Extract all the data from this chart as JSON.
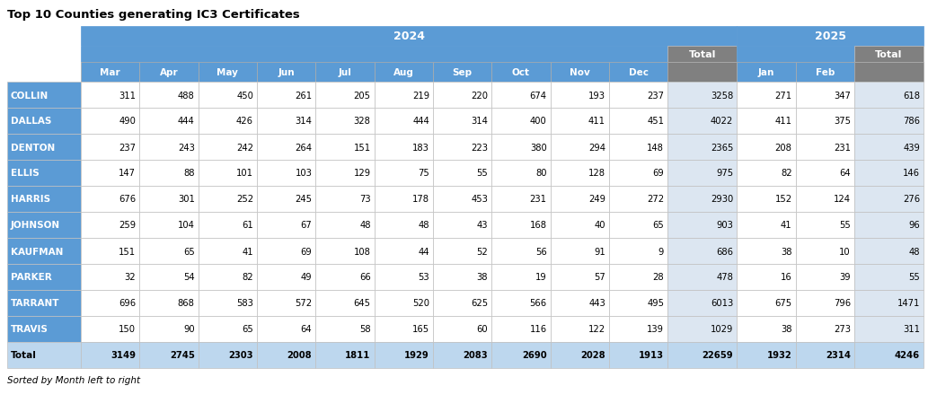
{
  "title": "Top 10 Counties generating IC3 Certificates",
  "footer": "Sorted by Month left to right",
  "col_headers": [
    "Mar",
    "Apr",
    "May",
    "Jun",
    "Jul",
    "Aug",
    "Sep",
    "Oct",
    "Nov",
    "Dec",
    "Total",
    "Jan",
    "Feb",
    "Total"
  ],
  "row_labels": [
    "COLLIN",
    "DALLAS",
    "DENTON",
    "ELLIS",
    "HARRIS",
    "JOHNSON",
    "KAUFMAN",
    "PARKER",
    "TARRANT",
    "TRAVIS",
    "Total"
  ],
  "data": [
    [
      311,
      488,
      450,
      261,
      205,
      219,
      220,
      674,
      193,
      237,
      3258,
      271,
      347,
      618
    ],
    [
      490,
      444,
      426,
      314,
      328,
      444,
      314,
      400,
      411,
      451,
      4022,
      411,
      375,
      786
    ],
    [
      237,
      243,
      242,
      264,
      151,
      183,
      223,
      380,
      294,
      148,
      2365,
      208,
      231,
      439
    ],
    [
      147,
      88,
      101,
      103,
      129,
      75,
      55,
      80,
      128,
      69,
      975,
      82,
      64,
      146
    ],
    [
      676,
      301,
      252,
      245,
      73,
      178,
      453,
      231,
      249,
      272,
      2930,
      152,
      124,
      276
    ],
    [
      259,
      104,
      61,
      67,
      48,
      48,
      43,
      168,
      40,
      65,
      903,
      41,
      55,
      96
    ],
    [
      151,
      65,
      41,
      69,
      108,
      44,
      52,
      56,
      91,
      9,
      686,
      38,
      10,
      48
    ],
    [
      32,
      54,
      82,
      49,
      66,
      53,
      38,
      19,
      57,
      28,
      478,
      16,
      39,
      55
    ],
    [
      696,
      868,
      583,
      572,
      645,
      520,
      625,
      566,
      443,
      495,
      6013,
      675,
      796,
      1471
    ],
    [
      150,
      90,
      65,
      64,
      58,
      165,
      60,
      116,
      122,
      139,
      1029,
      38,
      273,
      311
    ],
    [
      3149,
      2745,
      2303,
      2008,
      1811,
      1929,
      2083,
      2690,
      2028,
      1913,
      22659,
      1932,
      2314,
      4246
    ]
  ],
  "color_header_blue": "#5b9bd5",
  "color_total_gray": "#808080",
  "color_row_label_blue": "#5b9bd5",
  "color_total_row_bg": "#bdd7ee",
  "color_data_bg": "#ffffff",
  "color_data_alt_bg": "#dce6f1",
  "color_border": "#c0c0c0",
  "color_header_text": "#ffffff",
  "color_row_label_text": "#ffffff",
  "color_data_text": "#000000",
  "color_total_row_label_text": "#000000"
}
